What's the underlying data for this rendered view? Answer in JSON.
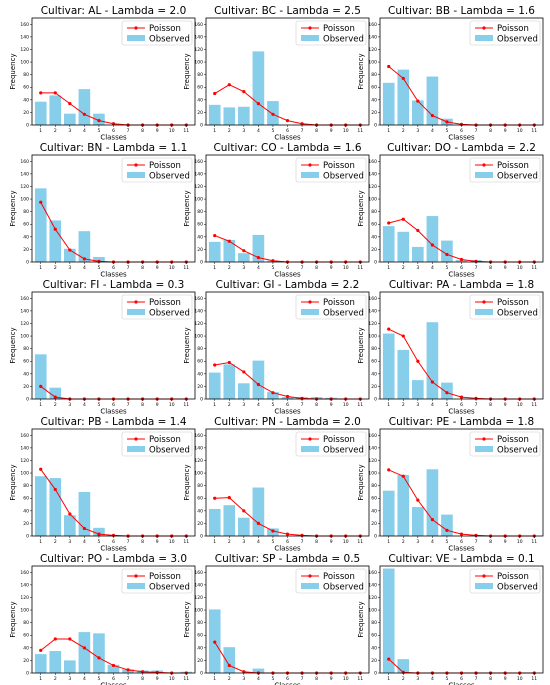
{
  "figure": {
    "xlabel": "Classes",
    "ylabel": "Frequency",
    "legend": {
      "poisson_label": "Poisson",
      "observed_label": "Observed",
      "placement": "top-right"
    },
    "colors": {
      "bar": "#87ceeb",
      "line": "#ff0000"
    },
    "x_ticks": [
      "1",
      "2",
      "3",
      "4",
      "5",
      "6",
      "7",
      "8",
      "9",
      "10",
      "11"
    ],
    "y_ticks": [
      0,
      20,
      40,
      60,
      80,
      100,
      120,
      140,
      160
    ],
    "ylim": [
      0,
      170
    ]
  },
  "chart_data": [
    {
      "type": "bar",
      "title": "Cultivar: AL  -  Lambda = 2.0",
      "categories": [
        1,
        2,
        3,
        4,
        5,
        6,
        7,
        8,
        9,
        10,
        11
      ],
      "series": [
        {
          "name": "Observed",
          "values": [
            37,
            47,
            18,
            57,
            18,
            0,
            0,
            0,
            0,
            0,
            0
          ]
        },
        {
          "name": "Poisson",
          "values": [
            51,
            51,
            34,
            17,
            7,
            2,
            0,
            0,
            0,
            0,
            0
          ]
        }
      ]
    },
    {
      "type": "bar",
      "title": "Cultivar: BC  -  Lambda = 2.5",
      "categories": [
        1,
        2,
        3,
        4,
        5,
        6,
        7,
        8,
        9,
        10,
        11
      ],
      "series": [
        {
          "name": "Observed",
          "values": [
            32,
            28,
            29,
            117,
            38,
            0,
            0,
            0,
            0,
            0,
            0
          ]
        },
        {
          "name": "Poisson",
          "values": [
            50,
            64,
            53,
            34,
            17,
            7,
            2,
            0,
            0,
            0,
            0
          ]
        }
      ]
    },
    {
      "type": "bar",
      "title": "Cultivar: BB  -  Lambda = 1.6",
      "categories": [
        1,
        2,
        3,
        4,
        5,
        6,
        7,
        8,
        9,
        10,
        11
      ],
      "series": [
        {
          "name": "Observed",
          "values": [
            67,
            88,
            39,
            77,
            10,
            0,
            0,
            0,
            0,
            0,
            0
          ]
        },
        {
          "name": "Poisson",
          "values": [
            93,
            74,
            38,
            15,
            5,
            1,
            0,
            0,
            0,
            0,
            0
          ]
        }
      ]
    },
    {
      "type": "bar",
      "title": "Cultivar: BN  -  Lambda = 1.1",
      "categories": [
        1,
        2,
        3,
        4,
        5,
        6,
        7,
        8,
        9,
        10,
        11
      ],
      "series": [
        {
          "name": "Observed",
          "values": [
            117,
            66,
            21,
            49,
            8,
            0,
            0,
            0,
            0,
            0,
            0
          ]
        },
        {
          "name": "Poisson",
          "values": [
            95,
            52,
            19,
            5,
            1,
            0,
            0,
            0,
            0,
            0,
            0
          ]
        }
      ]
    },
    {
      "type": "bar",
      "title": "Cultivar: CO  -  Lambda = 1.6",
      "categories": [
        1,
        2,
        3,
        4,
        5,
        6,
        7,
        8,
        9,
        10,
        11
      ],
      "series": [
        {
          "name": "Observed",
          "values": [
            32,
            35,
            14,
            43,
            2,
            0,
            0,
            0,
            0,
            0,
            0
          ]
        },
        {
          "name": "Poisson",
          "values": [
            42,
            33,
            18,
            7,
            2,
            0,
            0,
            0,
            0,
            0,
            0
          ]
        }
      ]
    },
    {
      "type": "bar",
      "title": "Cultivar: DO  -  Lambda = 2.2",
      "categories": [
        1,
        2,
        3,
        4,
        5,
        6,
        7,
        8,
        9,
        10,
        11
      ],
      "series": [
        {
          "name": "Observed",
          "values": [
            57,
            48,
            24,
            73,
            34,
            3,
            3,
            0,
            0,
            0,
            0
          ]
        },
        {
          "name": "Poisson",
          "values": [
            62,
            68,
            50,
            27,
            12,
            4,
            1,
            0,
            0,
            0,
            0
          ]
        }
      ]
    },
    {
      "type": "bar",
      "title": "Cultivar: FI  -  Lambda = 0.3",
      "categories": [
        1,
        2,
        3,
        4,
        5,
        6,
        7,
        8,
        9,
        10,
        11
      ],
      "series": [
        {
          "name": "Observed",
          "values": [
            71,
            18,
            0,
            0,
            0,
            0,
            0,
            0,
            0,
            0,
            0
          ]
        },
        {
          "name": "Poisson",
          "values": [
            20,
            3,
            0,
            0,
            0,
            0,
            0,
            0,
            0,
            0,
            0
          ]
        }
      ]
    },
    {
      "type": "bar",
      "title": "Cultivar: GI  -  Lambda = 2.2",
      "categories": [
        1,
        2,
        3,
        4,
        5,
        6,
        7,
        8,
        9,
        10,
        11
      ],
      "series": [
        {
          "name": "Observed",
          "values": [
            42,
            55,
            25,
            61,
            11,
            3,
            3,
            3,
            2,
            0,
            0
          ]
        },
        {
          "name": "Poisson",
          "values": [
            54,
            58,
            43,
            23,
            10,
            4,
            1,
            0,
            0,
            0,
            0
          ]
        }
      ]
    },
    {
      "type": "bar",
      "title": "Cultivar: PA  -  Lambda = 1.8",
      "categories": [
        1,
        2,
        3,
        4,
        5,
        6,
        7,
        8,
        9,
        10,
        11
      ],
      "series": [
        {
          "name": "Observed",
          "values": [
            104,
            78,
            30,
            122,
            26,
            0,
            0,
            0,
            0,
            0,
            0
          ]
        },
        {
          "name": "Poisson",
          "values": [
            111,
            100,
            60,
            27,
            10,
            3,
            1,
            0,
            0,
            0,
            0
          ]
        }
      ]
    },
    {
      "type": "bar",
      "title": "Cultivar: PB  -  Lambda = 1.4",
      "categories": [
        1,
        2,
        3,
        4,
        5,
        6,
        7,
        8,
        9,
        10,
        11
      ],
      "series": [
        {
          "name": "Observed",
          "values": [
            95,
            92,
            33,
            70,
            13,
            1,
            0,
            0,
            0,
            0,
            0
          ]
        },
        {
          "name": "Poisson",
          "values": [
            106,
            74,
            35,
            12,
            3,
            1,
            0,
            0,
            0,
            0,
            0
          ]
        }
      ]
    },
    {
      "type": "bar",
      "title": "Cultivar: PN  -  Lambda = 2.0",
      "categories": [
        1,
        2,
        3,
        4,
        5,
        6,
        7,
        8,
        9,
        10,
        11
      ],
      "series": [
        {
          "name": "Observed",
          "values": [
            43,
            49,
            29,
            77,
            12,
            0,
            0,
            0,
            0,
            0,
            0
          ]
        },
        {
          "name": "Poisson",
          "values": [
            60,
            61,
            40,
            20,
            8,
            3,
            1,
            0,
            0,
            0,
            0
          ]
        }
      ]
    },
    {
      "type": "bar",
      "title": "Cultivar: PE  -  Lambda = 1.8",
      "categories": [
        1,
        2,
        3,
        4,
        5,
        6,
        7,
        8,
        9,
        10,
        11
      ],
      "series": [
        {
          "name": "Observed",
          "values": [
            72,
            97,
            46,
            106,
            34,
            0,
            0,
            0,
            0,
            0,
            0
          ]
        },
        {
          "name": "Poisson",
          "values": [
            105,
            95,
            57,
            26,
            9,
            3,
            1,
            0,
            0,
            0,
            0
          ]
        }
      ]
    },
    {
      "type": "bar",
      "title": "Cultivar: PO  -  Lambda = 3.0",
      "categories": [
        1,
        2,
        3,
        4,
        5,
        6,
        7,
        8,
        9,
        10,
        11
      ],
      "series": [
        {
          "name": "Observed",
          "values": [
            30,
            35,
            20,
            65,
            63,
            13,
            6,
            4,
            4,
            0,
            2
          ]
        },
        {
          "name": "Poisson",
          "values": [
            36,
            54,
            54,
            40,
            24,
            12,
            5,
            2,
            1,
            0,
            0
          ]
        }
      ]
    },
    {
      "type": "bar",
      "title": "Cultivar: SP  -  Lambda = 0.5",
      "categories": [
        1,
        2,
        3,
        4,
        5,
        6,
        7,
        8,
        9,
        10,
        11
      ],
      "series": [
        {
          "name": "Observed",
          "values": [
            101,
            41,
            0,
            7,
            0,
            0,
            0,
            0,
            0,
            0,
            0
          ]
        },
        {
          "name": "Poisson",
          "values": [
            49,
            12,
            2,
            0,
            0,
            0,
            0,
            0,
            0,
            0,
            0
          ]
        }
      ]
    },
    {
      "type": "bar",
      "title": "Cultivar: VE  -  Lambda = 0.1",
      "categories": [
        1,
        2,
        3,
        4,
        5,
        6,
        7,
        8,
        9,
        10,
        11
      ],
      "series": [
        {
          "name": "Observed",
          "values": [
            166,
            22,
            0,
            0,
            0,
            0,
            0,
            0,
            0,
            0,
            0
          ]
        },
        {
          "name": "Poisson",
          "values": [
            22,
            1,
            0,
            0,
            0,
            0,
            0,
            0,
            0,
            0,
            0
          ]
        }
      ]
    }
  ]
}
